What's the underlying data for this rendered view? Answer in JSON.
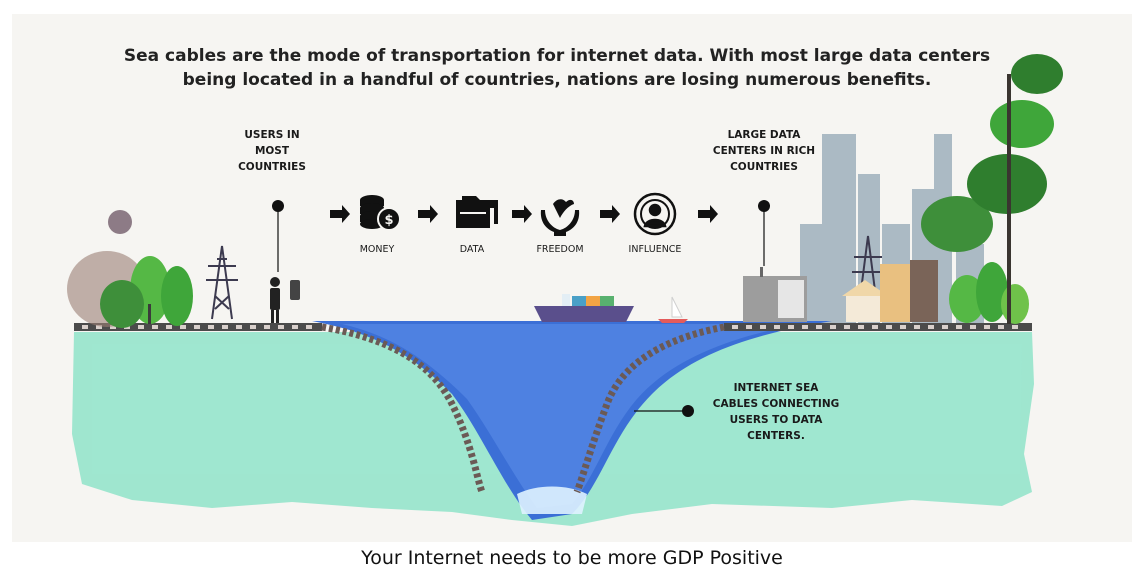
{
  "headline": {
    "line1": "Sea cables are the mode of transportation for internet data. With most large data centers",
    "line2": "being located in a handful of countries, nations are losing numerous benefits."
  },
  "left_label": {
    "line1": "USERS IN",
    "line2": "MOST",
    "line3": "COUNTRIES"
  },
  "right_label": {
    "line1": "LARGE DATA",
    "line2": "CENTERS IN RICH",
    "line3": "COUNTRIES"
  },
  "flow": [
    {
      "label": "MONEY",
      "icon": "coins-dollar-icon"
    },
    {
      "label": "DATA",
      "icon": "folders-icon"
    },
    {
      "label": "FREEDOM",
      "icon": "hands-dove-icon"
    },
    {
      "label": "INFLUENCE",
      "icon": "broadcast-person-icon"
    }
  ],
  "cable_label": {
    "line1": "INTERNET SEA",
    "line2": "CABLES CONNECTING",
    "line3": "USERS TO DATA",
    "line4": "CENTERS."
  },
  "footer": "Your Internet needs to be more GDP Positive",
  "colors": {
    "sea_green": "#8fe3c9",
    "ocean_blue": "#3b6fd6",
    "cable": "#6b5a55",
    "tree_green": "#3fa63a",
    "city_gray": "#9fb0bd"
  }
}
